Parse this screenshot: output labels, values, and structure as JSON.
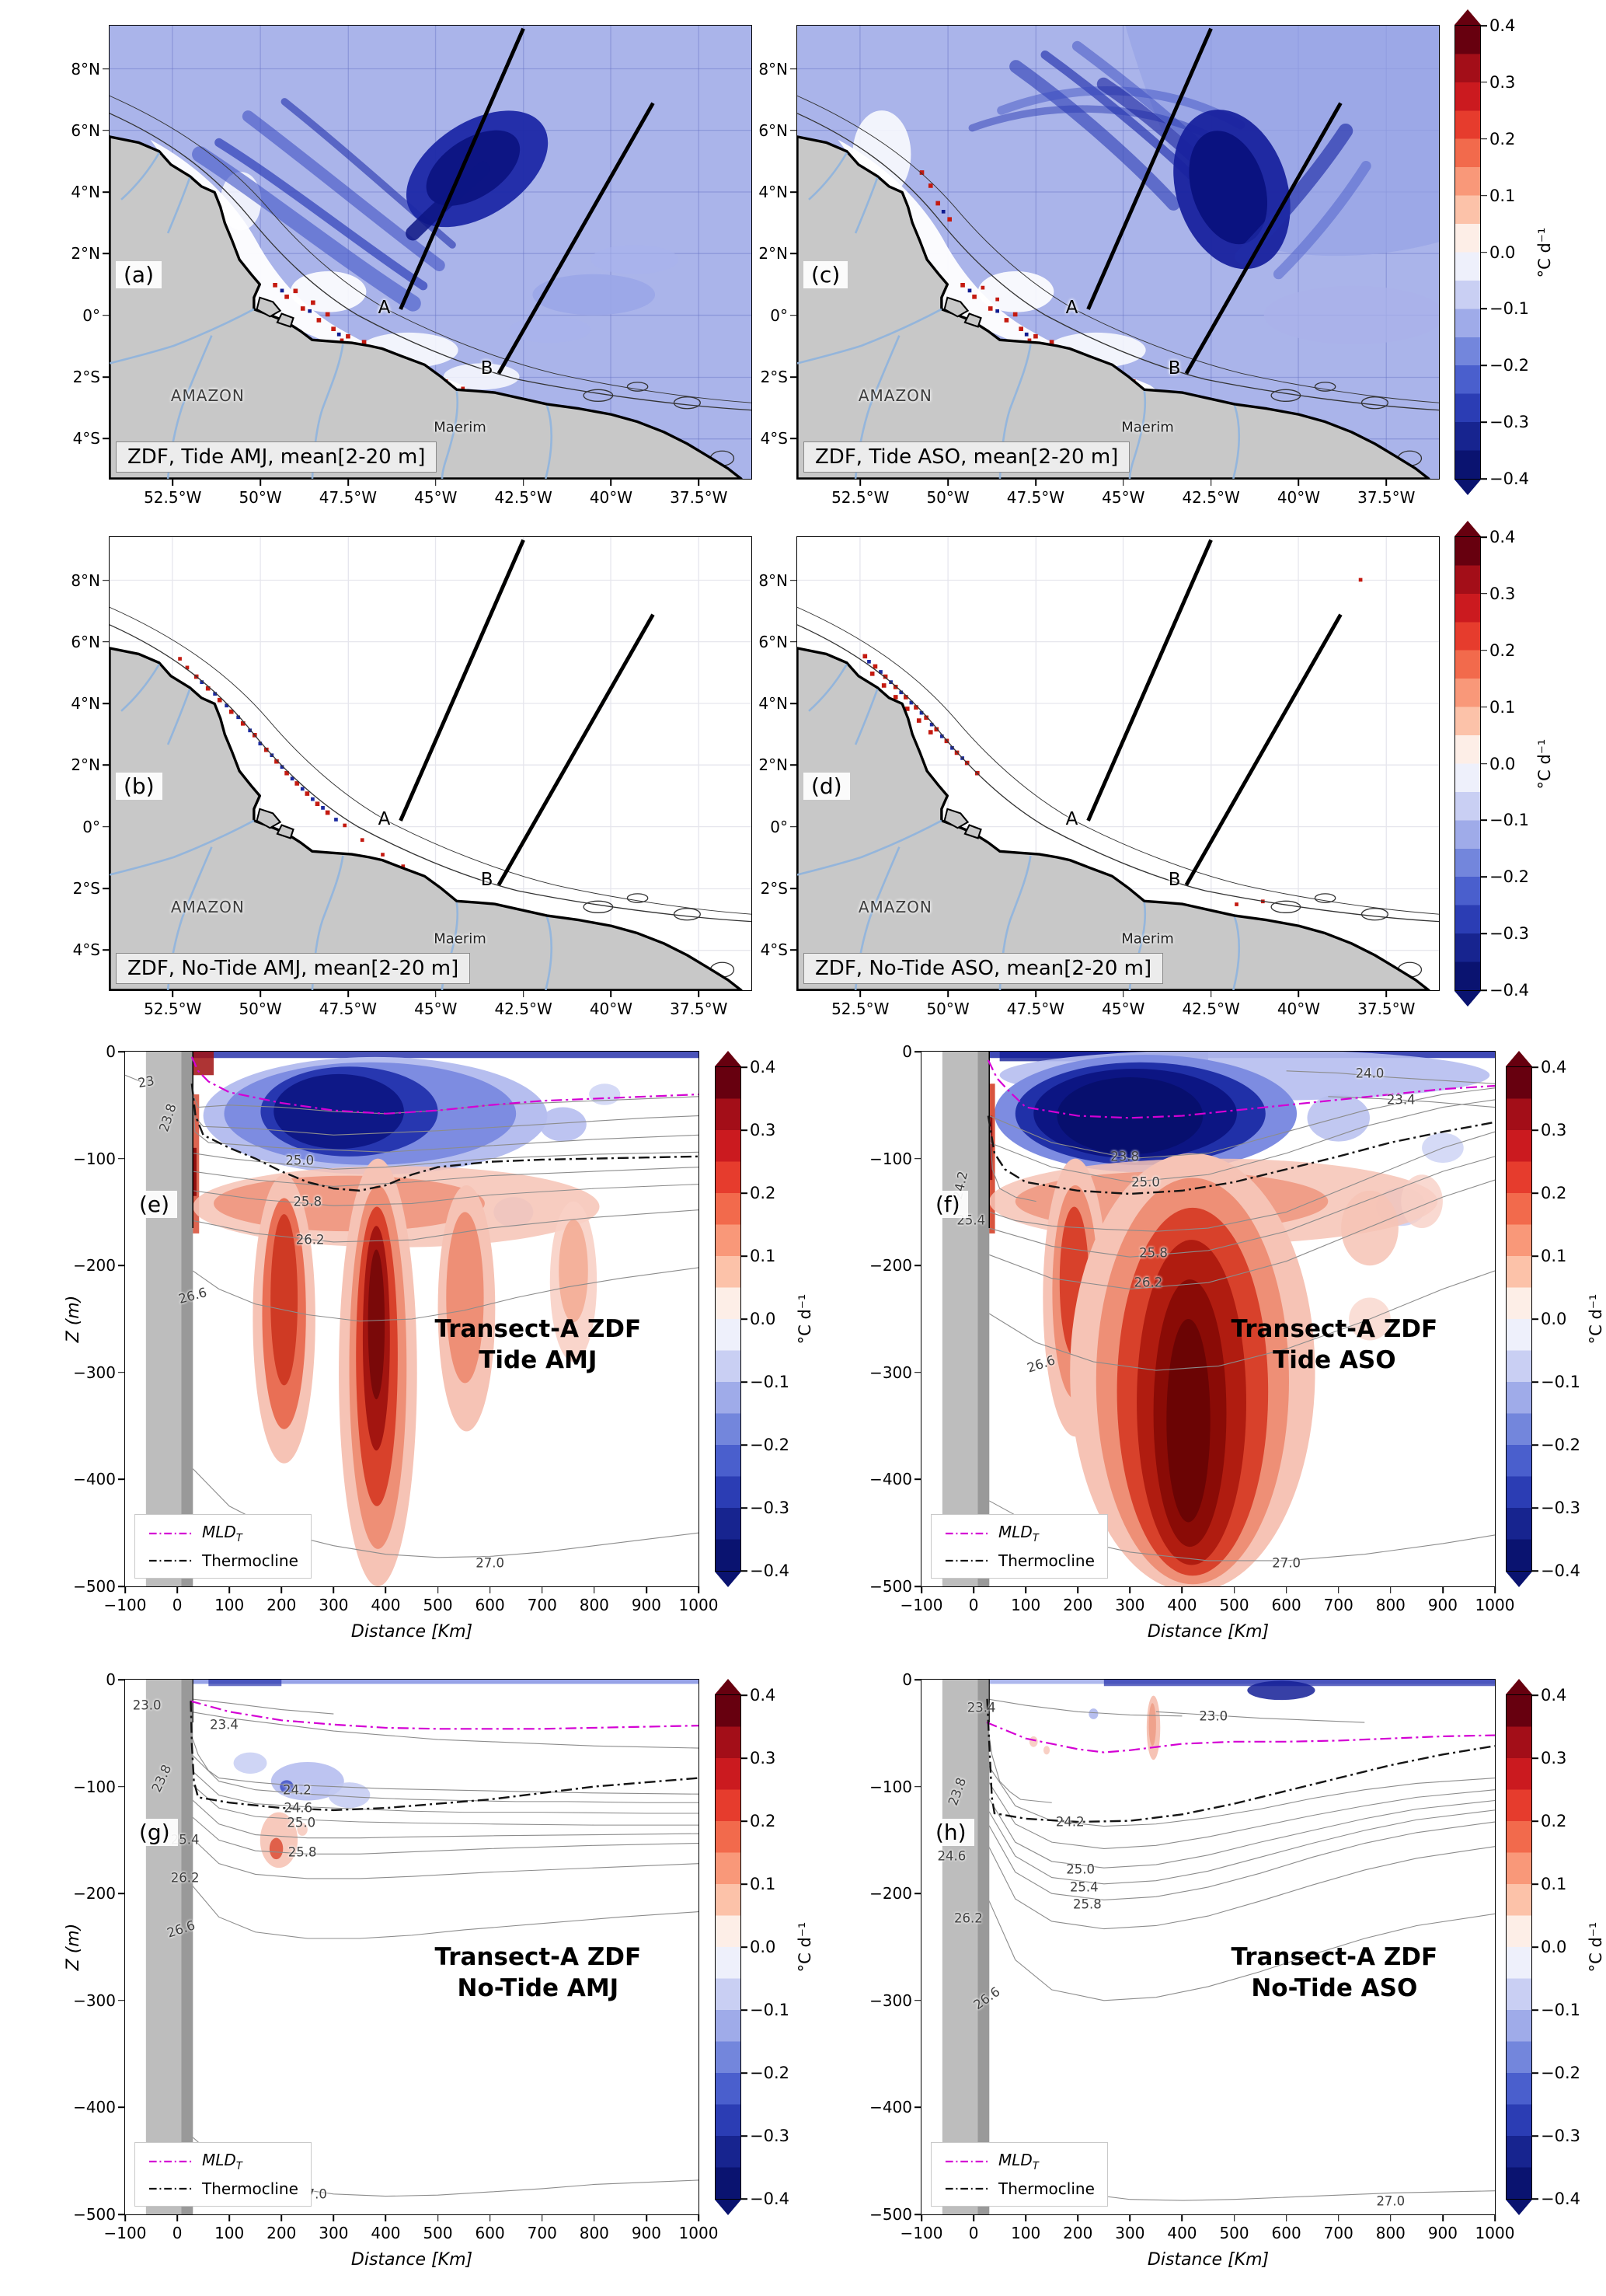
{
  "figure": {
    "unit_label": "°C d⁻¹",
    "colorbar": {
      "vmin": -0.4,
      "vmax": 0.4,
      "tick_values": [
        0.4,
        0.3,
        0.2,
        0.1,
        0.0,
        -0.1,
        -0.2,
        -0.3,
        -0.4
      ],
      "tick_labels": [
        "0.4",
        "0.3",
        "0.2",
        "0.1",
        "0.0",
        "−0.1",
        "−0.2",
        "−0.3",
        "−0.4"
      ],
      "colors_top_to_bottom": [
        "#67000f",
        "#a30e18",
        "#cb1a1f",
        "#e63c2d",
        "#f26a4c",
        "#f99879",
        "#fcc2a9",
        "#fdeee7",
        "#eef0fb",
        "#c9cff3",
        "#9fabe9",
        "#7386dc",
        "#4a5fcd",
        "#2b3db4",
        "#17248f",
        "#0a1370"
      ]
    }
  },
  "maps": {
    "axes": {
      "lon_labels": [
        "52.5°W",
        "50°W",
        "47.5°W",
        "45°W",
        "42.5°W",
        "40°W",
        "37.5°W"
      ],
      "lon_values": [
        -52.5,
        -50,
        -47.5,
        -45,
        -42.5,
        -40,
        -37.5
      ],
      "lon_range": [
        -54.3,
        -36.0
      ],
      "lat_labels": [
        "8°N",
        "6°N",
        "4°N",
        "2°N",
        "0°",
        "2°S",
        "4°S"
      ],
      "lat_values": [
        8,
        6,
        4,
        2,
        0,
        -2,
        -4
      ],
      "lat_range": [
        9.4,
        -5.3
      ]
    },
    "annotations": {
      "amazon": "AMAZON",
      "maerim": "Maerim",
      "transect_a": "A",
      "transect_b": "B"
    },
    "panels": {
      "a": {
        "label": "(a)",
        "title": "ZDF, Tide AMJ, mean[2-20 m]"
      },
      "b": {
        "label": "(b)",
        "title": "ZDF, No-Tide AMJ, mean[2-20 m]"
      },
      "c": {
        "label": "(c)",
        "title": "ZDF, Tide ASO, mean[2-20 m]"
      },
      "d": {
        "label": "(d)",
        "title": "ZDF, No-Tide ASO, mean[2-20 m]"
      }
    }
  },
  "transects": {
    "axes": {
      "x_label": "Distance [Km]",
      "x_values": [
        -100,
        0,
        100,
        200,
        300,
        400,
        500,
        600,
        700,
        800,
        900,
        1000
      ],
      "x_labels": [
        "−100",
        "0",
        "100",
        "200",
        "300",
        "400",
        "500",
        "600",
        "700",
        "800",
        "900",
        "1000"
      ],
      "x_range": [
        -100,
        1000
      ],
      "y_label": "Z (m)",
      "y_values": [
        0,
        -100,
        -200,
        -300,
        -400,
        -500
      ],
      "y_labels": [
        "0",
        "−100",
        "−200",
        "−300",
        "−400",
        "−500"
      ],
      "y_range": [
        0,
        -500
      ]
    },
    "legend": {
      "mld": "MLD",
      "mld_sub": "T",
      "thermocline": "Thermocline"
    },
    "panels": {
      "e": {
        "label": "(e)",
        "title_line1": "Transect-A ZDF",
        "title_line2": "Tide AMJ",
        "contour_labels": [
          {
            "t": "23",
            "x": -60,
            "z": -28,
            "r": -10
          },
          {
            "t": "23.8",
            "x": -18,
            "z": -62,
            "r": -72
          },
          {
            "t": "25.0",
            "x": 235,
            "z": -102
          },
          {
            "t": "25.8",
            "x": 250,
            "z": -140
          },
          {
            "t": "26.2",
            "x": 255,
            "z": -176
          },
          {
            "t": "26.6",
            "x": 30,
            "z": -228,
            "r": -15
          },
          {
            "t": "27.0",
            "x": 600,
            "z": -478
          }
        ]
      },
      "f": {
        "label": "(f)",
        "title_line1": "Transect-A ZDF",
        "title_line2": "Tide ASO",
        "contour_labels": [
          {
            "t": "24.0",
            "x": 760,
            "z": -20
          },
          {
            "t": "23.4",
            "x": 820,
            "z": -45
          },
          {
            "t": "24.2",
            "x": -25,
            "z": -125,
            "r": -78
          },
          {
            "t": "25.4",
            "x": -5,
            "z": -158
          },
          {
            "t": "23.8",
            "x": 290,
            "z": -98
          },
          {
            "t": "25.0",
            "x": 330,
            "z": -122
          },
          {
            "t": "25.8",
            "x": 345,
            "z": -188
          },
          {
            "t": "26.2",
            "x": 335,
            "z": -216
          },
          {
            "t": "26.6",
            "x": 130,
            "z": -292,
            "r": -18
          },
          {
            "t": "27.0",
            "x": 600,
            "z": -478
          }
        ]
      },
      "g": {
        "label": "(g)",
        "title_line1": "Transect-A ZDF",
        "title_line2": "No-Tide AMJ",
        "contour_labels": [
          {
            "t": "23.0",
            "x": -58,
            "z": -24
          },
          {
            "t": "23.4",
            "x": 90,
            "z": -42
          },
          {
            "t": "23.8",
            "x": -30,
            "z": -92,
            "r": -65
          },
          {
            "t": "24.2",
            "x": 230,
            "z": -103
          },
          {
            "t": "24.6",
            "x": 232,
            "z": -120
          },
          {
            "t": "25.0",
            "x": 238,
            "z": -134
          },
          {
            "t": "25.4",
            "x": 15,
            "z": -150
          },
          {
            "t": "25.8",
            "x": 240,
            "z": -161
          },
          {
            "t": "26.2",
            "x": 15,
            "z": -185
          },
          {
            "t": "26.6",
            "x": 8,
            "z": -233,
            "r": -18
          },
          {
            "t": "27.0",
            "x": 260,
            "z": -481
          }
        ]
      },
      "h": {
        "label": "(h)",
        "title_line1": "Transect-A ZDF",
        "title_line2": "No-Tide ASO",
        "contour_labels": [
          {
            "t": "23.4",
            "x": 15,
            "z": -26
          },
          {
            "t": "23.0",
            "x": 460,
            "z": -34
          },
          {
            "t": "23.8",
            "x": -32,
            "z": -105,
            "r": -70
          },
          {
            "t": "24.2",
            "x": 185,
            "z": -133
          },
          {
            "t": "24.6",
            "x": -42,
            "z": -165
          },
          {
            "t": "25.0",
            "x": 205,
            "z": -177
          },
          {
            "t": "25.4",
            "x": 212,
            "z": -194
          },
          {
            "t": "25.8",
            "x": 218,
            "z": -210
          },
          {
            "t": "26.2",
            "x": -10,
            "z": -223
          },
          {
            "t": "26.6",
            "x": 25,
            "z": -298,
            "r": -35
          },
          {
            "t": "27.0",
            "x": 800,
            "z": -488
          }
        ]
      }
    }
  },
  "chart_data": [
    {
      "id": "a",
      "type": "heatmap",
      "title": "ZDF, Tide AMJ, mean[2-20 m]",
      "units": "°C d⁻¹",
      "value_range": [
        -0.4,
        0.4
      ],
      "x_ticks": [
        "52.5°W",
        "50°W",
        "47.5°W",
        "45°W",
        "42.5°W",
        "40°W",
        "37.5°W"
      ],
      "y_ticks": [
        "8°N",
        "6°N",
        "4°N",
        "2°N",
        "0°",
        "2°S",
        "4°S"
      ],
      "annotations": [
        "A",
        "B",
        "AMAZON",
        "Maerim"
      ],
      "summary": "Broad weak negative ZDF (≈ −0.05 to −0.1) offshore; strong negative filaments (−0.3 to −0.4) along the shelf break near 4–6°N with a dark plume near 44°W 4°N; small positive speckles along the coast; transect lines A and B drawn."
    },
    {
      "id": "b",
      "type": "heatmap",
      "title": "ZDF, No-Tide AMJ, mean[2-20 m]",
      "units": "°C d⁻¹",
      "value_range": [
        -0.4,
        0.4
      ],
      "x_ticks": [
        "52.5°W",
        "50°W",
        "47.5°W",
        "45°W",
        "42.5°W",
        "40°W",
        "37.5°W"
      ],
      "y_ticks": [
        "8°N",
        "6°N",
        "4°N",
        "2°N",
        "0°",
        "2°S",
        "4°S"
      ],
      "annotations": [
        "A",
        "B",
        "AMAZON",
        "Maerim"
      ],
      "summary": "Near-zero ZDF almost everywhere; scattered ± speckles confined to the shelf break between about 48–52°W and 2–6°N."
    },
    {
      "id": "c",
      "type": "heatmap",
      "title": "ZDF, Tide ASO, mean[2-20 m]",
      "units": "°C d⁻¹",
      "value_range": [
        -0.4,
        0.4
      ],
      "x_ticks": [
        "52.5°W",
        "50°W",
        "47.5°W",
        "45°W",
        "42.5°W",
        "40°W",
        "37.5°W"
      ],
      "y_ticks": [
        "8°N",
        "6°N",
        "4°N",
        "2°N",
        "0°",
        "2°S",
        "4°S"
      ],
      "annotations": [
        "A",
        "B",
        "AMAZON",
        "Maerim"
      ],
      "summary": "Stronger and more extensive negative filaments than AMJ fanning offshore north of 4°N, large dark plume near 43°W 4°N and broad weak negative region to the northeast."
    },
    {
      "id": "d",
      "type": "heatmap",
      "title": "ZDF, No-Tide ASO, mean[2-20 m]",
      "units": "°C d⁻¹",
      "value_range": [
        -0.4,
        0.4
      ],
      "x_ticks": [
        "52.5°W",
        "50°W",
        "47.5°W",
        "45°W",
        "42.5°W",
        "40°W",
        "37.5°W"
      ],
      "y_ticks": [
        "8°N",
        "6°N",
        "4°N",
        "2°N",
        "0°",
        "2°S",
        "4°S"
      ],
      "annotations": [
        "A",
        "B",
        "AMAZON",
        "Maerim"
      ],
      "summary": "Near-zero ZDF; mixed-sign speckles along the shelf break concentrated near 50–52°W, 4–7°N."
    },
    {
      "id": "e",
      "type": "heatmap",
      "title": "Transect-A ZDF Tide AMJ",
      "units": "°C d⁻¹",
      "value_range": [
        -0.4,
        0.4
      ],
      "x_range_km": [
        -100,
        1000
      ],
      "z_range_m": [
        -500,
        0
      ],
      "isopycnal_labels": [
        23,
        23.8,
        25.0,
        25.8,
        26.2,
        26.6,
        27.0
      ],
      "lines": [
        "MLD_T",
        "Thermocline"
      ],
      "summary": "Strong cooling (to −0.4) between the surface and ~100 m over 50–700 km; warming plumes (to +0.4) below the thermocline reaching 500 m near 200, 380 and 550 km."
    },
    {
      "id": "f",
      "type": "heatmap",
      "title": "Transect-A ZDF Tide ASO",
      "units": "°C d⁻¹",
      "value_range": [
        -0.4,
        0.4
      ],
      "x_range_km": [
        -100,
        1000
      ],
      "z_range_m": [
        -500,
        0
      ],
      "isopycnal_labels": [
        24.0,
        23.4,
        24.2,
        25.4,
        23.8,
        25.0,
        25.8,
        26.2,
        26.6,
        27.0
      ],
      "lines": [
        "MLD_T",
        "Thermocline"
      ],
      "summary": "Very strong surface cooling 0–120 m between 0–600 km and a single massive warming plume (to +0.4) from ~120 m down past 500 m centered near 300–550 km."
    },
    {
      "id": "g",
      "type": "heatmap",
      "title": "Transect-A ZDF No-Tide AMJ",
      "units": "°C d⁻¹",
      "value_range": [
        -0.4,
        0.4
      ],
      "x_range_km": [
        -100,
        1000
      ],
      "z_range_m": [
        -500,
        0
      ],
      "isopycnal_labels": [
        23.0,
        23.4,
        23.8,
        24.2,
        24.6,
        25.0,
        25.4,
        25.8,
        26.2,
        26.6,
        27.0
      ],
      "lines": [
        "MLD_T",
        "Thermocline"
      ],
      "summary": "ZDF near zero; only small weak patches (±0.1) near 100–300 km between 80–170 m; smooth isopycnals, MLD ~40 m, thermocline ~100–120 m."
    },
    {
      "id": "h",
      "type": "heatmap",
      "title": "Transect-A ZDF No-Tide ASO",
      "units": "°C d⁻¹",
      "value_range": [
        -0.4,
        0.4
      ],
      "x_range_km": [
        -100,
        1000
      ],
      "z_range_m": [
        -500,
        0
      ],
      "isopycnal_labels": [
        23.4,
        23.0,
        23.8,
        24.2,
        24.6,
        25.0,
        25.4,
        25.8,
        26.2,
        26.6,
        27.0
      ],
      "lines": [
        "MLD_T",
        "Thermocline"
      ],
      "summary": "ZDF near zero; thin negative strip at the surface and a small positive sliver near 250 km, 20–70 m; thermocline deepens to ~130 m near the coast and shoals eastward."
    }
  ]
}
